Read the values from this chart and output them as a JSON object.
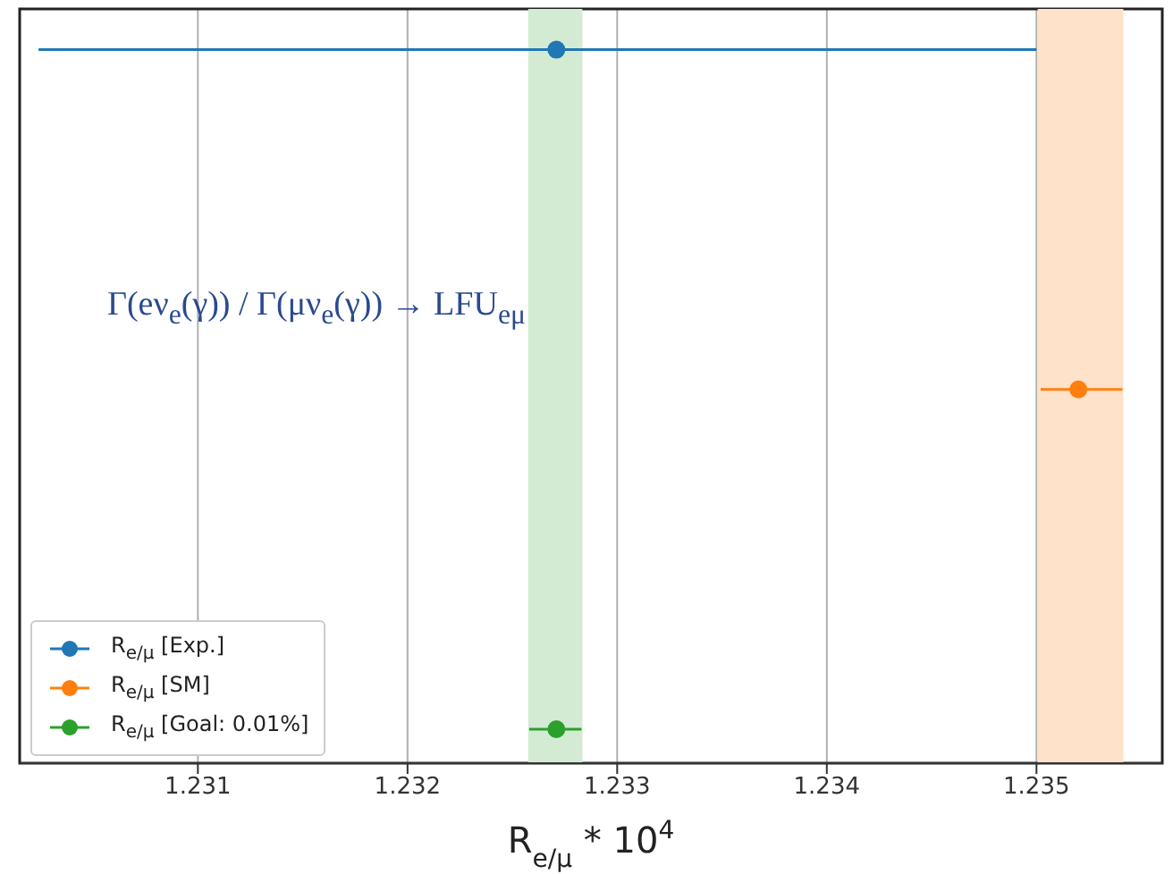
{
  "chart_data": {
    "type": "scatter",
    "orientation": "horizontal",
    "categories": [
      null,
      null,
      null
    ],
    "xlabel": "R$_{e/μ}$ * 10$^{4}$",
    "xlim": [
      1.23015,
      1.2356
    ],
    "xticks": [
      1.231,
      1.232,
      1.233,
      1.234,
      1.235
    ],
    "grid": "x",
    "legend": "bottom left",
    "marker": "circle",
    "series": [
      {
        "name": "R$_{e/μ}$ [Exp.]",
        "color": "#1f77b4",
        "values": [
          1.23271,
          null,
          null
        ],
        "errors": [
          [
            1.23024,
            1.235
          ],
          null,
          null
        ]
      },
      {
        "name": "R$_{e/μ}$ [SM]",
        "color": "#ff7f0e",
        "values": [
          null,
          1.2352,
          null
        ],
        "errors": [
          null,
          [
            1.23502,
            1.23541
          ],
          null
        ]
      },
      {
        "name": "R$_{e/μ}$ [Goal: 0.01%]",
        "color": "#2ca02c",
        "values": [
          null,
          null,
          1.23271
        ],
        "errors": [
          null,
          null,
          [
            1.23258,
            1.23283
          ]
        ]
      }
    ],
    "bands": [
      {
        "axis": "x",
        "from": 1.23258,
        "to": 1.23283,
        "color": "#d4ebd3"
      },
      {
        "axis": "x",
        "from": 1.23501,
        "to": 1.23541,
        "color": "#fee2c9"
      }
    ],
    "annotations": [
      "Γ(eν$_{e}$(γ)) / Γ(μν$_{e}$(γ)) → LFU$_{eμ}$"
    ]
  }
}
